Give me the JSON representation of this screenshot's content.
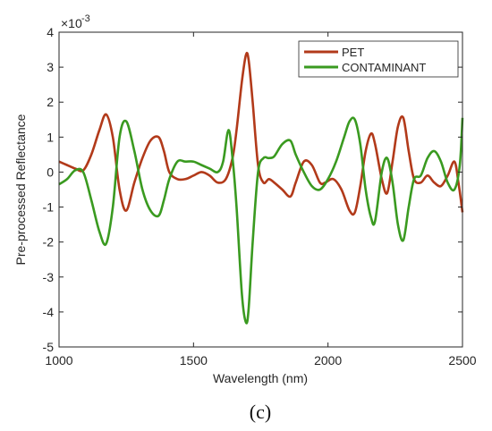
{
  "chart_data": {
    "type": "line",
    "title": "",
    "xlabel": "Wavelength (nm)",
    "ylabel": "Pre-processed Reflectance",
    "y_exponent_label": "×10",
    "y_exponent_power": "-3",
    "xlim": [
      1000,
      2500
    ],
    "ylim": [
      -5,
      4
    ],
    "x_ticks": [
      1000,
      1500,
      2000,
      2500
    ],
    "x_tick_labels": [
      "1000",
      "1500",
      "2000",
      "2500"
    ],
    "y_ticks": [
      -5,
      -4,
      -3,
      -2,
      -1,
      0,
      1,
      2,
      3,
      4
    ],
    "y_tick_labels": [
      "-5",
      "-4",
      "-3",
      "-2",
      "-1",
      "0",
      "1",
      "2",
      "3",
      "4"
    ],
    "grid": false,
    "legend_position": "top-right",
    "series": [
      {
        "name": "PET",
        "color": "#b23a1a",
        "x": [
          1000,
          1030,
          1060,
          1090,
          1120,
          1150,
          1175,
          1200,
          1225,
          1250,
          1280,
          1310,
          1340,
          1370,
          1390,
          1410,
          1440,
          1470,
          1500,
          1530,
          1560,
          1590,
          1620,
          1645,
          1660,
          1680,
          1695,
          1705,
          1720,
          1740,
          1760,
          1780,
          1800,
          1830,
          1860,
          1880,
          1910,
          1940,
          1970,
          1990,
          2020,
          2050,
          2080,
          2100,
          2120,
          2140,
          2160,
          2175,
          2200,
          2220,
          2240,
          2260,
          2280,
          2300,
          2320,
          2345,
          2370,
          2395,
          2420,
          2445,
          2470,
          2485,
          2500
        ],
        "y": [
          0.3,
          0.2,
          0.1,
          0.05,
          0.5,
          1.2,
          1.65,
          1.0,
          -0.5,
          -1.1,
          -0.3,
          0.4,
          0.9,
          1.0,
          0.6,
          0.0,
          -0.2,
          -0.2,
          -0.1,
          0.0,
          -0.1,
          -0.3,
          -0.2,
          0.4,
          1.2,
          2.6,
          3.35,
          3.2,
          2.0,
          0.2,
          -0.3,
          -0.2,
          -0.3,
          -0.5,
          -0.7,
          -0.3,
          0.3,
          0.2,
          -0.3,
          -0.3,
          -0.2,
          -0.5,
          -1.1,
          -1.15,
          -0.4,
          0.6,
          1.1,
          0.8,
          -0.2,
          -0.6,
          0.3,
          1.3,
          1.55,
          0.6,
          -0.2,
          -0.3,
          -0.1,
          -0.3,
          -0.4,
          -0.1,
          0.3,
          -0.3,
          -1.15
        ]
      },
      {
        "name": "CONTAMINANT",
        "color": "#3a9a20",
        "x": [
          1000,
          1030,
          1060,
          1090,
          1120,
          1150,
          1175,
          1200,
          1225,
          1250,
          1280,
          1310,
          1340,
          1370,
          1390,
          1410,
          1440,
          1470,
          1500,
          1530,
          1560,
          1590,
          1610,
          1630,
          1645,
          1660,
          1680,
          1695,
          1705,
          1720,
          1740,
          1760,
          1780,
          1800,
          1830,
          1860,
          1880,
          1910,
          1940,
          1970,
          2000,
          2030,
          2060,
          2080,
          2100,
          2120,
          2140,
          2160,
          2175,
          2200,
          2220,
          2240,
          2260,
          2280,
          2300,
          2320,
          2345,
          2370,
          2395,
          2420,
          2445,
          2470,
          2490,
          2500
        ],
        "y": [
          -0.35,
          -0.2,
          0.05,
          0.0,
          -0.8,
          -1.7,
          -2.05,
          -1.0,
          1.0,
          1.45,
          0.6,
          -0.5,
          -1.1,
          -1.25,
          -0.8,
          -0.2,
          0.3,
          0.3,
          0.3,
          0.2,
          0.1,
          0.0,
          0.3,
          1.2,
          0.4,
          -1.0,
          -3.5,
          -4.3,
          -3.9,
          -2.0,
          0.0,
          0.4,
          0.4,
          0.45,
          0.8,
          0.9,
          0.5,
          0.0,
          -0.4,
          -0.5,
          -0.2,
          0.3,
          1.0,
          1.45,
          1.5,
          0.8,
          -0.5,
          -1.3,
          -1.4,
          0.0,
          0.4,
          -0.3,
          -1.5,
          -1.95,
          -1.0,
          -0.2,
          -0.1,
          0.4,
          0.6,
          0.3,
          -0.3,
          -0.5,
          0.2,
          1.55
        ]
      }
    ]
  },
  "caption": "(c)"
}
